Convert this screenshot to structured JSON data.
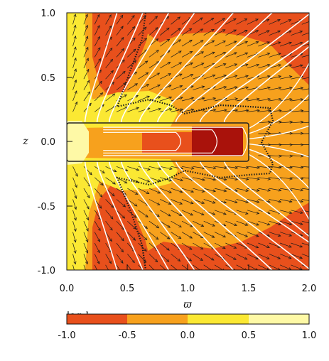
{
  "chart_data": {
    "type": "heatmap",
    "title": "",
    "xlabel": "ϖ",
    "ylabel": "z",
    "xlim": [
      0.0,
      2.0
    ],
    "ylim": [
      -1.0,
      1.0
    ],
    "x_ticks": [
      "0.0",
      "0.5",
      "1.0",
      "1.5",
      "2.0"
    ],
    "y_ticks": [
      "-1.0",
      "-0.5",
      "0.0",
      "0.5",
      "1.0"
    ],
    "colorbar": {
      "title_prefix": "log ",
      "title_var": "h",
      "range": [
        -1.0,
        1.0
      ],
      "ticks": [
        "-1.0",
        "-0.5",
        "0.0",
        "0.5",
        "1.0"
      ],
      "bins": [
        {
          "from": -1.0,
          "to": -0.5,
          "color": "#e8501c"
        },
        {
          "from": -0.5,
          "to": 0.0,
          "color": "#f7a11d"
        },
        {
          "from": 0.0,
          "to": 0.5,
          "color": "#fbe833"
        },
        {
          "from": 0.5,
          "to": 1.0,
          "color": "#fef9a6"
        }
      ]
    },
    "colors": {
      "below_range": "#a9120b",
      "field_lines": "#ffffff",
      "vectors": "#1a1a1a",
      "disk_outline": "#222222"
    },
    "disk": {
      "x_range": [
        0.0,
        1.5
      ],
      "z_range": [
        -0.15,
        0.15
      ]
    },
    "notes": "Filled contours of log h with white field lines, black velocity vectors and a dotted boundary contour"
  }
}
